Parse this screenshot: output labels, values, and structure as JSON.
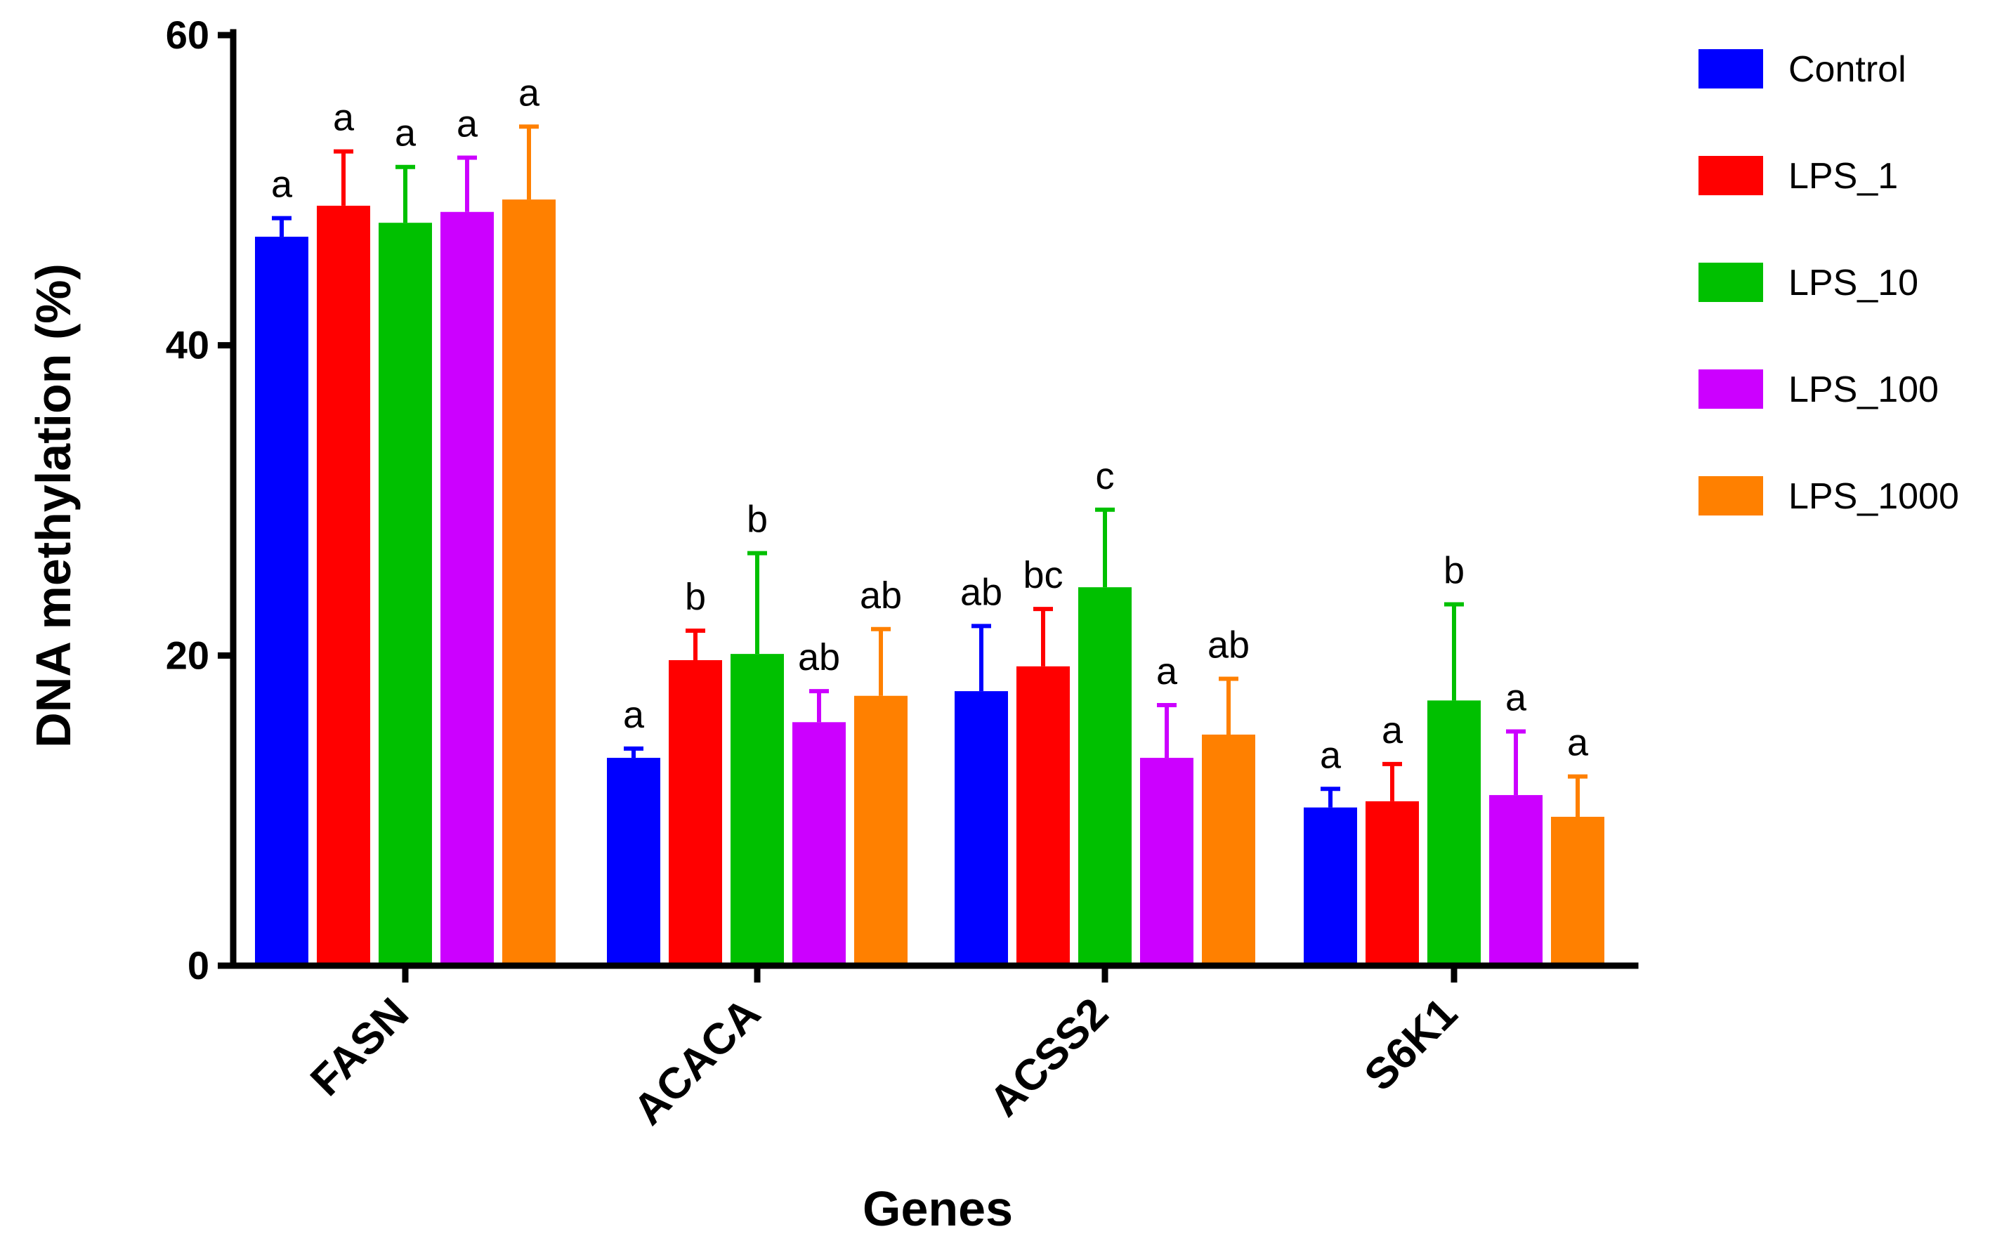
{
  "chart_data": {
    "type": "bar",
    "title": "",
    "xlabel": "Genes",
    "ylabel": "DNA methylation (%)",
    "ylim": [
      0,
      60
    ],
    "yticks": [
      0,
      20,
      40,
      60
    ],
    "categories": [
      "FASN",
      "ACACA",
      "ACSS2",
      "S6K1"
    ],
    "legend_position": "top-right",
    "series": [
      {
        "name": "Control",
        "color": "#0000FF",
        "values": [
          47.0,
          13.4,
          17.7,
          10.2
        ],
        "errors": [
          1.2,
          0.6,
          4.2,
          1.2
        ],
        "labels": [
          "a",
          "a",
          "ab",
          "a"
        ]
      },
      {
        "name": "LPS_1",
        "color": "#FF0000",
        "values": [
          49.0,
          19.7,
          19.3,
          10.6
        ],
        "errors": [
          3.5,
          1.9,
          3.7,
          2.4
        ],
        "labels": [
          "a",
          "b",
          "bc",
          "a"
        ]
      },
      {
        "name": "LPS_10",
        "color": "#00C000",
        "values": [
          47.9,
          20.1,
          24.4,
          17.1
        ],
        "errors": [
          3.6,
          6.5,
          5.0,
          6.2
        ],
        "labels": [
          "a",
          "b",
          "c",
          "b"
        ]
      },
      {
        "name": "LPS_100",
        "color": "#CC00FF",
        "values": [
          48.6,
          15.7,
          13.4,
          11.0
        ],
        "errors": [
          3.5,
          2.0,
          3.4,
          4.1
        ],
        "labels": [
          "a",
          "ab",
          "a",
          "a"
        ]
      },
      {
        "name": "LPS_1000",
        "color": "#FF8000",
        "values": [
          49.4,
          17.4,
          14.9,
          9.6
        ],
        "errors": [
          4.7,
          4.3,
          3.6,
          2.6
        ],
        "labels": [
          "a",
          "ab",
          "ab",
          "a"
        ]
      }
    ]
  }
}
